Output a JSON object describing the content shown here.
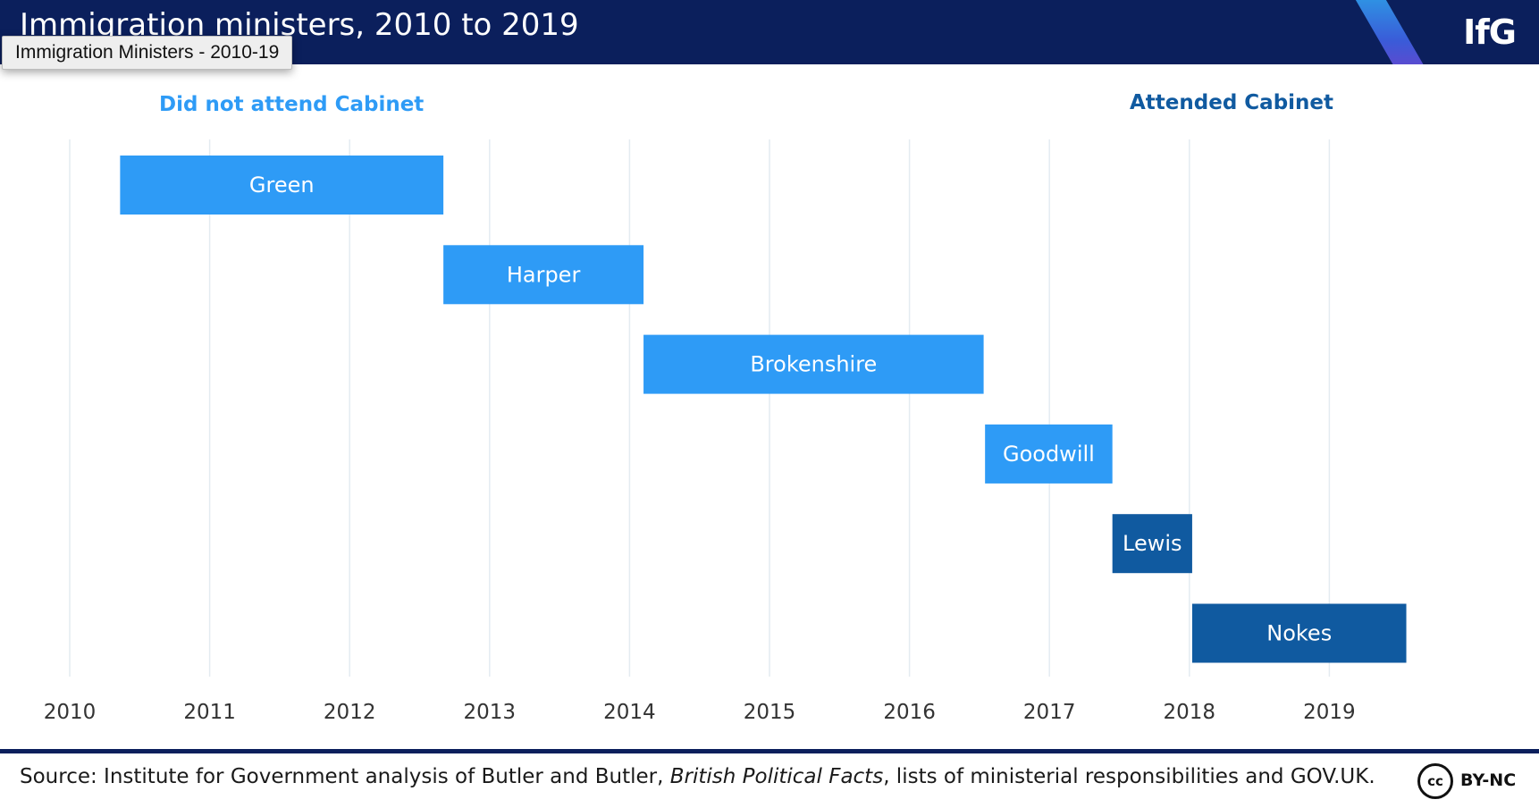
{
  "header": {
    "title": "Immigration ministers, 2010 to 2019",
    "logo": "IfG"
  },
  "tooltip": "Immigration Ministers - 2010-19",
  "legend": {
    "not_attended": "Did not attend Cabinet",
    "attended": "Attended Cabinet"
  },
  "colors": {
    "header_bg": "#0b1f5c",
    "not_attended": "#2e9bf6",
    "attended": "#105aa0",
    "gridline": "#e4ebf1"
  },
  "chart_data": {
    "type": "bar",
    "orientation": "horizontal-timeline",
    "x_ticks": [
      2010,
      2011,
      2012,
      2013,
      2014,
      2015,
      2016,
      2017,
      2018,
      2019
    ],
    "xlim": [
      2010,
      2020
    ],
    "grid": true,
    "series": [
      {
        "name": "Did not attend Cabinet",
        "color": "#2e9bf6"
      },
      {
        "name": "Attended Cabinet",
        "color": "#105aa0"
      }
    ],
    "bars": [
      {
        "label": "Green",
        "start": 2010.36,
        "end": 2012.67,
        "cabinet": false
      },
      {
        "label": "Harper",
        "start": 2012.67,
        "end": 2014.1,
        "cabinet": false
      },
      {
        "label": "Brokenshire",
        "start": 2014.1,
        "end": 2016.53,
        "cabinet": false
      },
      {
        "label": "Goodwill",
        "start": 2016.54,
        "end": 2017.45,
        "cabinet": false
      },
      {
        "label": "Lewis",
        "start": 2017.45,
        "end": 2018.02,
        "cabinet": true
      },
      {
        "label": "Nokes",
        "start": 2018.02,
        "end": 2019.55,
        "cabinet": true
      }
    ]
  },
  "footer": {
    "source_prefix": "Source: Institute for Government analysis of Butler and Butler, ",
    "source_italic": "British Political Facts",
    "source_suffix": ", lists of ministerial responsibilities and GOV.UK.",
    "cc": "cc",
    "license": "BY-NC"
  }
}
